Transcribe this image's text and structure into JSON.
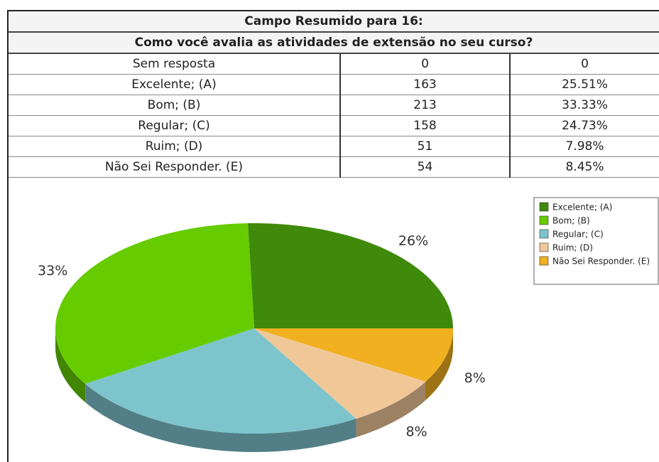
{
  "table": {
    "title": "Campo Resumido para 16:",
    "question": "Como você avalia as atividades de extensão no seu curso?",
    "rows": [
      [
        "Sem resposta",
        "0",
        "0"
      ],
      [
        "Excelente; (A)",
        "163",
        "25.51%"
      ],
      [
        "Bom; (B)",
        "213",
        "33.33%"
      ],
      [
        "Regular; (C)",
        "158",
        "24.73%"
      ],
      [
        "Ruim; (D)",
        "51",
        "7.98%"
      ],
      [
        "Não Sei Responder. (E)",
        "54",
        "8.45%"
      ]
    ]
  },
  "chart_data": {
    "type": "pie",
    "categories": [
      "Excelente; (A)",
      "Bom; (B)",
      "Regular; (C)",
      "Ruim; (D)",
      "Não Sei Responder. (E)"
    ],
    "values": [
      25.51,
      33.33,
      24.73,
      7.98,
      8.45
    ],
    "value_labels": [
      "26%",
      "33%",
      null,
      "8%",
      "8%"
    ],
    "colors": [
      "#3f8a0a",
      "#66cc00",
      "#7ec4cc",
      "#f0c898",
      "#f0b020"
    ],
    "legend": "top-right"
  }
}
